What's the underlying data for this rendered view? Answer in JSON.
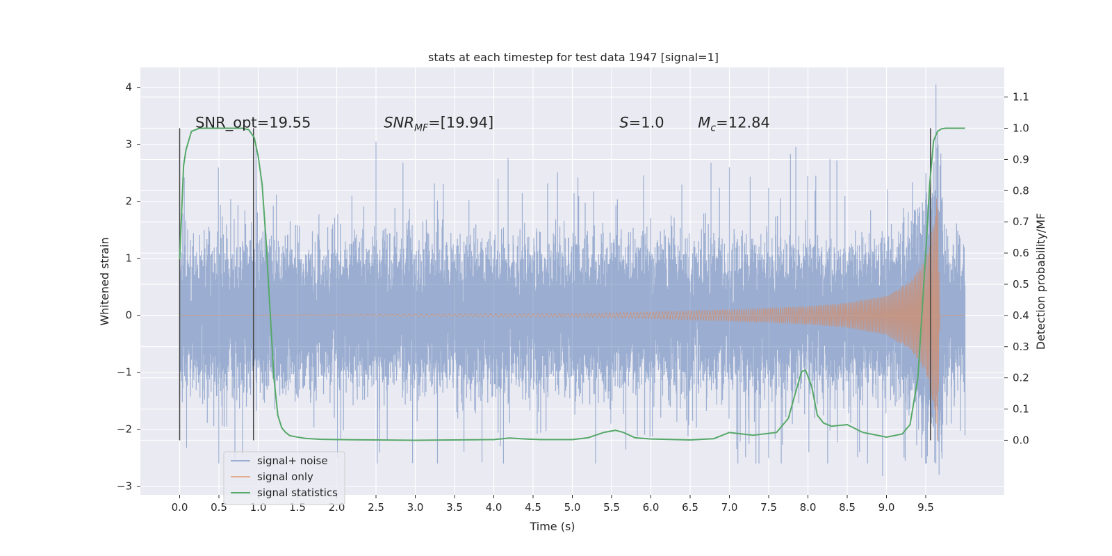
{
  "chart_data": {
    "type": "line",
    "title": "stats at each timestep for test data 1947 [signal=1]",
    "xlabel": "Time (s)",
    "ylabel_left": "Whitened strain",
    "ylabel_right": "Detection probability/MF",
    "xlim": [
      -0.5,
      10.5
    ],
    "ylim_left": [
      -3.15,
      4.35
    ],
    "ylim_right": [
      -0.175,
      1.195
    ],
    "x_ticks": [
      "0.0",
      "0.5",
      "1.0",
      "1.5",
      "2.0",
      "2.5",
      "3.0",
      "3.5",
      "4.0",
      "4.5",
      "5.0",
      "5.5",
      "6.0",
      "6.5",
      "7.0",
      "7.5",
      "8.0",
      "8.5",
      "9.0",
      "9.5"
    ],
    "x_tick_values": [
      0,
      0.5,
      1,
      1.5,
      2,
      2.5,
      3,
      3.5,
      4,
      4.5,
      5,
      5.5,
      6,
      6.5,
      7,
      7.5,
      8,
      8.5,
      9,
      9.5
    ],
    "y_left_ticks": [
      "4",
      "3",
      "2",
      "1",
      "0",
      "−1",
      "−2",
      "−3"
    ],
    "y_left_tick_values": [
      4,
      3,
      2,
      1,
      0,
      -1,
      -2,
      -3
    ],
    "y_right_ticks": [
      "1.1",
      "1.0",
      "0.9",
      "0.8",
      "0.7",
      "0.6",
      "0.5",
      "0.4",
      "0.3",
      "0.2",
      "0.1",
      "0.0"
    ],
    "y_right_tick_values": [
      1.1,
      1.0,
      0.9,
      0.8,
      0.7,
      0.6,
      0.5,
      0.4,
      0.3,
      0.2,
      0.1,
      0.0
    ],
    "grid": true,
    "legend_position": "lower-left",
    "colors": {
      "background": "#eaeaf2",
      "noise": "#4c72b0",
      "signal": "#dd8452",
      "stats": "#55a868",
      "markers": "#444444"
    },
    "series": [
      {
        "name": "signal+ noise",
        "axis": "left",
        "time_range": [
          0.0,
          10.0
        ],
        "description_values": "band approx -1.3 to 1.15 with spikes up to 4.0 at 9.63 and down to -2.8 at 9.67"
      },
      {
        "name": "signal only",
        "axis": "left",
        "time_range": [
          0.0,
          10.0
        ],
        "envelope": [
          [
            0.0,
            0.0
          ],
          [
            5.0,
            0.03
          ],
          [
            6.0,
            0.06
          ],
          [
            7.0,
            0.1
          ],
          [
            8.0,
            0.16
          ],
          [
            8.5,
            0.22
          ],
          [
            9.0,
            0.35
          ],
          [
            9.3,
            0.6
          ],
          [
            9.5,
            1.0
          ],
          [
            9.6,
            1.6
          ],
          [
            9.65,
            2.4
          ],
          [
            9.68,
            0.0
          ],
          [
            10.0,
            0.0
          ]
        ]
      },
      {
        "name": "signal statistics",
        "axis": "right",
        "x": [
          0.0,
          0.05,
          0.08,
          0.15,
          0.25,
          0.35,
          0.5,
          0.6,
          0.7,
          0.8,
          0.88,
          0.95,
          1.0,
          1.05,
          1.1,
          1.15,
          1.2,
          1.25,
          1.3,
          1.35,
          1.4,
          1.5,
          1.6,
          1.8,
          2.0,
          2.5,
          3.0,
          3.5,
          4.0,
          4.2,
          4.4,
          4.6,
          5.0,
          5.2,
          5.4,
          5.55,
          5.65,
          5.8,
          6.0,
          6.5,
          6.8,
          7.0,
          7.1,
          7.3,
          7.6,
          7.75,
          7.85,
          7.92,
          7.97,
          8.05,
          8.12,
          8.2,
          8.3,
          8.5,
          8.7,
          9.0,
          9.2,
          9.3,
          9.4,
          9.5,
          9.55,
          9.6,
          9.65,
          9.7,
          9.75,
          9.85,
          10.0
        ],
        "y": [
          0.58,
          0.88,
          0.93,
          0.99,
          1.0,
          1.0,
          1.0,
          1.0,
          1.0,
          1.0,
          0.995,
          0.97,
          0.91,
          0.82,
          0.64,
          0.42,
          0.2,
          0.08,
          0.04,
          0.025,
          0.015,
          0.01,
          0.006,
          0.003,
          0.002,
          0.001,
          0.0,
          0.001,
          0.002,
          0.007,
          0.004,
          0.002,
          0.002,
          0.008,
          0.025,
          0.032,
          0.025,
          0.008,
          0.004,
          0.001,
          0.005,
          0.025,
          0.022,
          0.016,
          0.025,
          0.07,
          0.16,
          0.22,
          0.225,
          0.17,
          0.08,
          0.055,
          0.045,
          0.05,
          0.025,
          0.01,
          0.02,
          0.05,
          0.2,
          0.6,
          0.82,
          0.96,
          0.99,
          0.998,
          1.0,
          1.0,
          1.0
        ]
      }
    ],
    "vertical_markers": [
      0.0,
      0.94,
      9.56
    ],
    "annotations": [
      {
        "text_plain": "SNR_opt=19.55",
        "x": 0.2,
        "y_right": 1.0
      },
      {
        "text_main": "SNR",
        "text_sub": "MF",
        "text_rest": "=[19.94]",
        "x": 2.6,
        "y_right": 1.0
      },
      {
        "text_main": "S",
        "text_rest": "=1.0",
        "x": 5.6,
        "y_right": 1.0
      },
      {
        "text_main": "M",
        "text_sub": "c",
        "text_rest": "=12.84",
        "x": 6.6,
        "y_right": 1.0
      }
    ],
    "legend": [
      "signal+ noise",
      "signal only",
      "signal statistics"
    ]
  }
}
